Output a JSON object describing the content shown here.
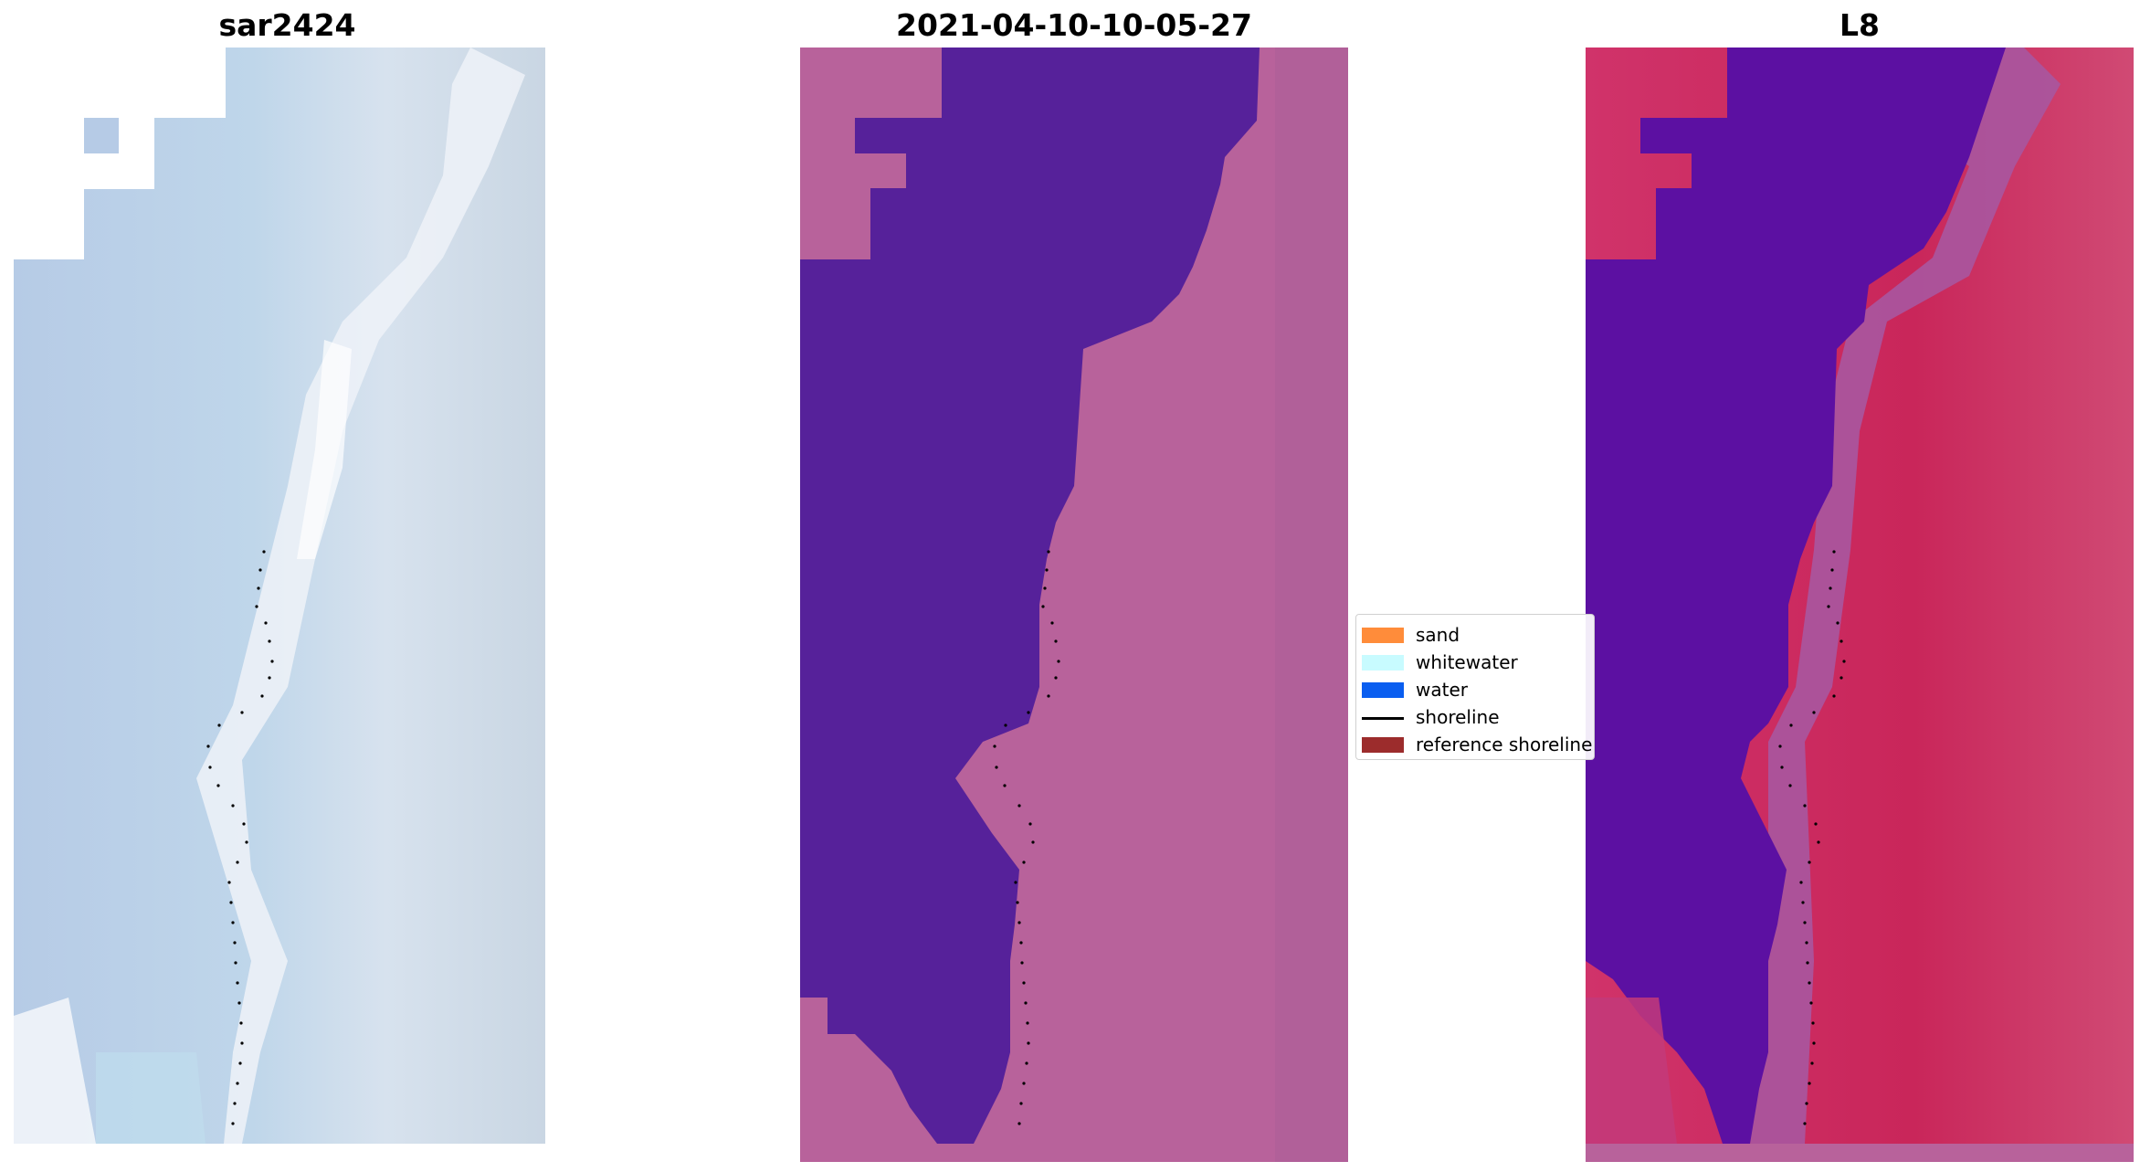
{
  "panels": [
    {
      "title": "sar2424"
    },
    {
      "title": "2021-04-10-10-05-27"
    },
    {
      "title": "L8"
    }
  ],
  "legend": {
    "items": [
      {
        "label": "sand",
        "color": "#ff8c3a",
        "kind": "patch"
      },
      {
        "label": "whitewater",
        "color": "#c8fbff",
        "kind": "patch"
      },
      {
        "label": "water",
        "color": "#0a5ef0",
        "kind": "patch"
      },
      {
        "label": "shoreline",
        "color": "#000000",
        "kind": "line"
      },
      {
        "label": "reference shoreline",
        "color": "#9c2c2c",
        "kind": "patch"
      }
    ]
  },
  "colors": {
    "rgb_sky": "#b9cee6",
    "rgb_pale": "#dfe7ef",
    "class_water": "#55229a",
    "class_land": "#b2649e",
    "mndwi_water": "#5a13a0",
    "mndwi_land": "#cb2d62"
  }
}
